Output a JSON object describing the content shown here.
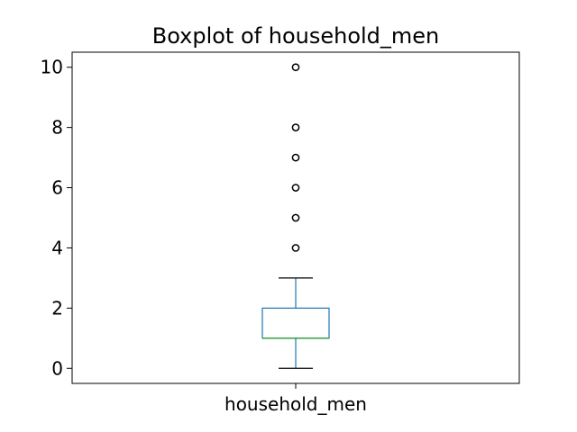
{
  "chart_data": {
    "type": "box",
    "title": "Boxplot of household_men",
    "xlabel": "",
    "ylabel": "",
    "categories": [
      "household_men"
    ],
    "ylim": [
      -0.5,
      10.5
    ],
    "yticks": [
      0,
      2,
      4,
      6,
      8,
      10
    ],
    "grid": false,
    "colors": {
      "box": "#1f77b4",
      "whisker": "#1f77b4",
      "cap": "#000000",
      "median": "#2ca02c",
      "flier": "#000000"
    },
    "boxes": [
      {
        "name": "household_men",
        "whisker_low": 0,
        "q1": 1,
        "median": 1,
        "q3": 2,
        "whisker_high": 3,
        "fliers": [
          4,
          5,
          6,
          7,
          8,
          10
        ]
      }
    ]
  }
}
